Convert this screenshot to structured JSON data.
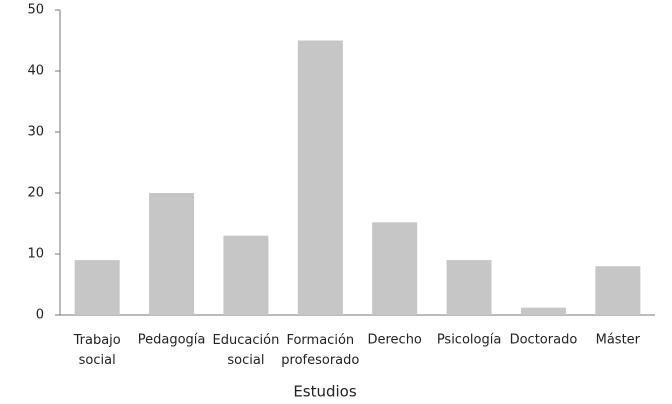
{
  "chart_data": {
    "type": "bar",
    "x_label": "Estudios",
    "categories": [
      "Trabajo social",
      "Pedagogía",
      "Educación social",
      "Formación profesorado",
      "Derecho",
      "Psicología",
      "Doctorado",
      "Máster"
    ],
    "values": [
      9,
      20,
      13,
      45,
      15.2,
      9,
      1.2,
      8
    ],
    "color": "#c6c6c6",
    "ylim": [
      0,
      50
    ],
    "yticks": [
      0,
      10,
      20,
      30,
      40,
      50
    ],
    "grid": false
  }
}
